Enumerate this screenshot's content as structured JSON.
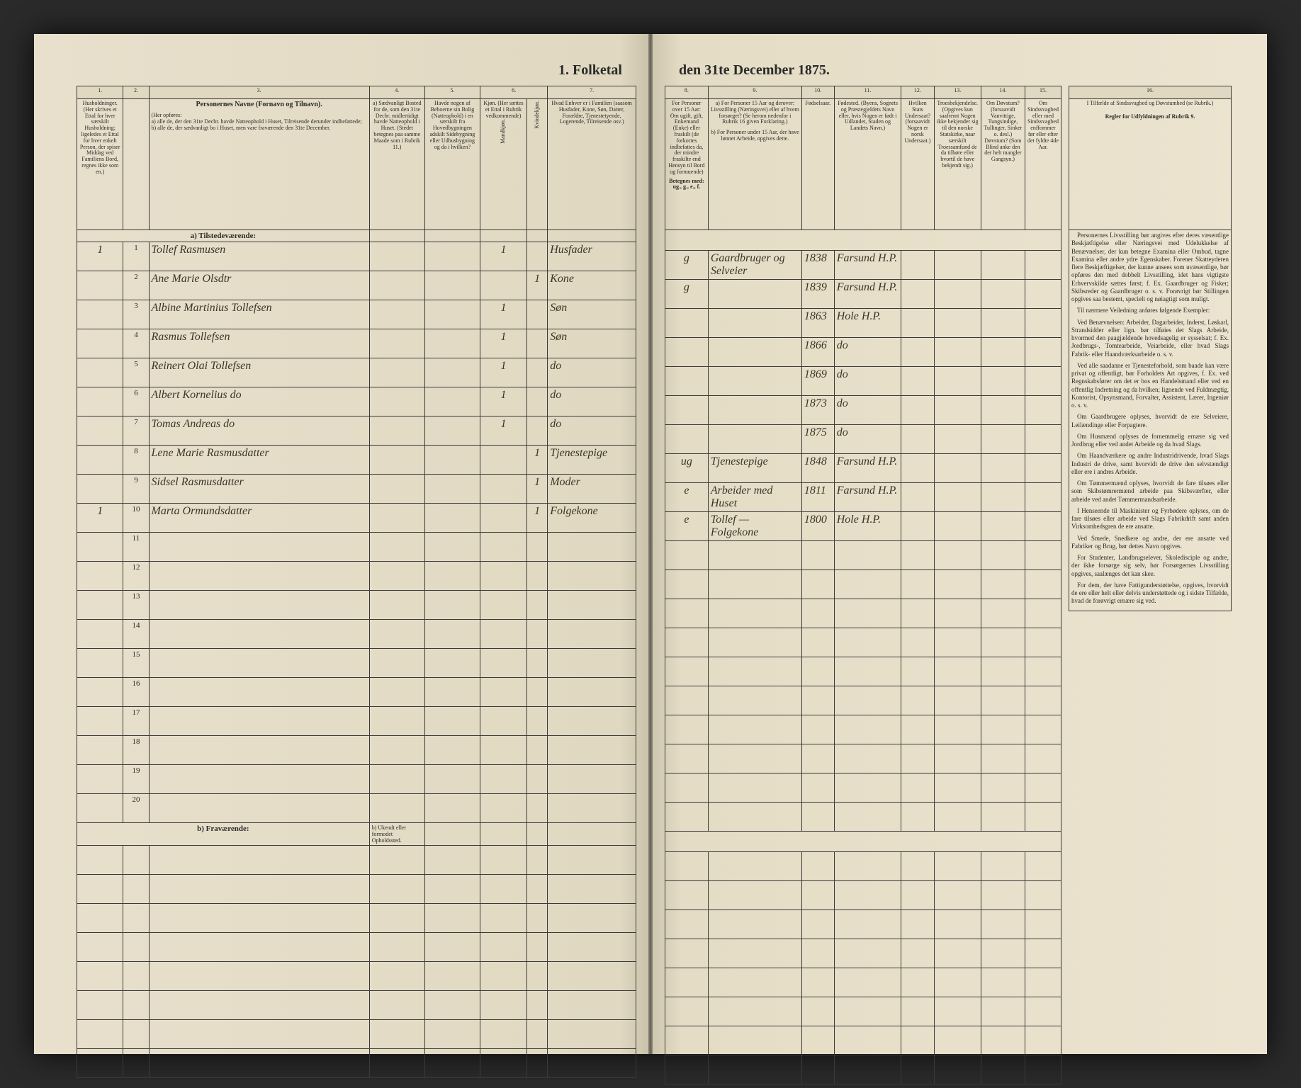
{
  "title_left": "1. Folketal",
  "title_right": "den 31te December 1875.",
  "columns_left": [
    "1.",
    "2.",
    "3.",
    "4.",
    "5.",
    "6.",
    "7."
  ],
  "columns_right": [
    "8.",
    "9.",
    "10.",
    "11.",
    "12.",
    "13.",
    "14.",
    "15.",
    "16."
  ],
  "headers_left": {
    "c1": "Husholdninger. (Her skrives et Ettal for hver særskilt Husholdning; ligeledes et Ettal for hver enkelt Person, der spiser Middag ved Familiens Bord, regnes ikke som en.)",
    "c2": "",
    "c3_title": "Personernes Navne (Fornavn og Tilnavn).",
    "c3_sub": "(Her opføres:\na) alle de, der den 31te Decbr. havde Natteophold i Huset, Tilreisende derunder indbefattede;\nb) alle de, der sædvanligt bo i Huset, men vare fraværende den 31te December.",
    "c4": "a) Sædvanligt Bosted for de, som den 31te Decbr. midlertidigt havde Natteophold i Huset. (Stedet betegnes paa samme Maade som i Rubrik 11.)",
    "c5": "Havde nogen af Beboerne sin Bolig (Natteophold) i en særskilt fra Hovedbygningen adskilt Sidebygning eller Udhusbygning og da i hvilken?",
    "c6": "Kjøn. (Her sættes et Ettal i Rubrik vedkommende)",
    "c6a": "Mandkjøn.",
    "c6b": "Kvindekjøn.",
    "c7": "Hvad Enhver er i Familien (saasom Husfader, Kone, Søn, Datter, Forældre, Tjenestetyende, Logerende, Tilreisende osv.)"
  },
  "headers_right": {
    "c8": "For Personer over 15 Aar: Om ugift, gift, Enkemand (Enke) eller fraskilt (de forkortes indbefattes da, der mindre fraskilte end Hensyn til Bord og formuende)",
    "c8b": "Betegnes med: ug., g., e., f.",
    "c9a": "a) For Personer 15 Aar og derover: Livsstilling (Næringsvei) eller af hvem forsørget? (Se herom nedenfor i Rubrik 16 given Forklaring.)",
    "c9b": "b) For Personer under 15 Aar, der have lønnet Arbeide, opgives dette.",
    "c10": "Fødselsaar.",
    "c11": "Fødested. (Byens, Sognets og Præstegjeldets Navn eller, hvis Nogen er født i Udlandet, Staden og Landets Navn.)",
    "c12": "Hvilken Stats Undersaat? (forsaavidt Nogen er norsk Undersaat.)",
    "c13": "Troesbekjendelse. (Opgives kun saafremt Nogen ikke bekjender sig til den norske Statskirke, naar særskilt Troessamfund de da tilhøre eller hvortil de have bekjendt sig.)",
    "c14": "Om Døvstum? (forsaavidt Vanvittige, Tungsindige, Tullinger, Sinker o. desl.) Døvstum? (Som Blind anke den der helt mangler Gangsyn.)",
    "c15": "Om Sindssvagbed eller med Sindssvagbed enffommer før eller efter det fyldte 4de Aar.",
    "c16_title": "I Tilfælde af Sindssvagbed og Døvstumhed (se Rubrik.)",
    "c16_sub": "Regler for Udfyldningen af Rubrik 9."
  },
  "section_a": "a) Tilstedeværende:",
  "section_b": "b) Fraværende:",
  "section_b_note": "b) Ukendt eller formodet Opholdssted.",
  "rows": [
    {
      "n": "1",
      "hh": "1",
      "name": "Tollef Rasmusen",
      "c4": "",
      "c5": "",
      "m": "1",
      "f": "",
      "rel": "Husfader",
      "ms": "g",
      "occ": "Gaardbruger og Selveier",
      "yr": "1838",
      "bp": "Farsund H.P."
    },
    {
      "n": "2",
      "hh": "",
      "name": "Ane Marie Olsdtr",
      "c4": "",
      "c5": "",
      "m": "",
      "f": "1",
      "rel": "Kone",
      "ms": "g",
      "occ": "",
      "yr": "1839",
      "bp": "Farsund H.P."
    },
    {
      "n": "3",
      "hh": "",
      "name": "Albine Martinius Tollefsen",
      "c4": "",
      "c5": "",
      "m": "1",
      "f": "",
      "rel": "Søn",
      "ms": "",
      "occ": "",
      "yr": "1863",
      "bp": "Hole H.P."
    },
    {
      "n": "4",
      "hh": "",
      "name": "Rasmus Tollefsen",
      "c4": "",
      "c5": "",
      "m": "1",
      "f": "",
      "rel": "Søn",
      "ms": "",
      "occ": "",
      "yr": "1866",
      "bp": "do"
    },
    {
      "n": "5",
      "hh": "",
      "name": "Reinert Olai Tollefsen",
      "c4": "",
      "c5": "",
      "m": "1",
      "f": "",
      "rel": "do",
      "ms": "",
      "occ": "",
      "yr": "1869",
      "bp": "do"
    },
    {
      "n": "6",
      "hh": "",
      "name": "Albert Kornelius do",
      "c4": "",
      "c5": "",
      "m": "1",
      "f": "",
      "rel": "do",
      "ms": "",
      "occ": "",
      "yr": "1873",
      "bp": "do"
    },
    {
      "n": "7",
      "hh": "",
      "name": "Tomas Andreas do",
      "c4": "",
      "c5": "",
      "m": "1",
      "f": "",
      "rel": "do",
      "ms": "",
      "occ": "",
      "yr": "1875",
      "bp": "do"
    },
    {
      "n": "8",
      "hh": "",
      "name": "Lene Marie Rasmusdatter",
      "c4": "",
      "c5": "",
      "m": "",
      "f": "1",
      "rel": "Tjenestepige",
      "ms": "ug",
      "occ": "Tjenestepige",
      "yr": "1848",
      "bp": "Farsund H.P."
    },
    {
      "n": "9",
      "hh": "",
      "name": "Sidsel Rasmusdatter",
      "c4": "",
      "c5": "",
      "m": "",
      "f": "1",
      "rel": "Moder",
      "ms": "e",
      "occ": "Arbeider med Huset",
      "yr": "1811",
      "bp": "Farsund H.P."
    },
    {
      "n": "10",
      "hh": "1",
      "name": "Marta Ormundsdatter",
      "c4": "",
      "c5": "",
      "m": "",
      "f": "1",
      "rel": "Folgekone",
      "ms": "e",
      "occ": "Tollef — Folgekone",
      "yr": "1800",
      "bp": "Hole H.P."
    }
  ],
  "empty_rows_a": [
    "11",
    "12",
    "13",
    "14",
    "15",
    "16",
    "17",
    "18",
    "19",
    "20"
  ],
  "empty_rows_b": 8,
  "instructions": {
    "title": "Regler for Udfyldningen af Rubrik 9.",
    "paras": [
      "Personernes Livsstilling bør angives efter deres væsentlige Beskjæftigelse eller Næringsvei med Udelukkelse af Benævnelser, der kun betegne Examina eller Ombud, tagne Examina eller andre ydre Egenskaber. Forener Skatteyderen flere Beskjæftigelser, der kunne ansees som uvæsentlige, bør opføres den med dobbelt Livsstilling, idet hans vigtigste Erhvervskilde sættes først; f. Ex. Gaardbruger og Fisker; Skibsreder og Gaardbruger o. s. v. Forøvrigt bør Stillingen opgives saa bestemt, specielt og nøiagtigt som muligt.",
      "Til nærmere Veiledning anføres følgende Exempler:",
      "Ved Benævnelsen: Arbeider, Dagarbeider, Inderst, Løskarl, Strandsidder eller lign. bør tilføies det Slags Arbeide, hvormed den paagjældende hovedsagelig er sysselsat; f. Ex. Jordbrugs-, Tomtearbeide, Veiarbeide, eller hvad Slags Fabrik- eller Haandværksarbeide o. s. v.",
      "Ved alle saadanne er Tjenesteforhold, som baade kan være privat og offentligt, bør Forholdets Art opgives, f. Ex. ved Regnskabsfører om det er hos en Handelsmand eller ved en offentlig Indretning og da hvilken; lignende ved Fuldmægtig, Kontorist, Opsynsmand, Forvalter, Assistent, Lærer, Ingeniør o. s. v.",
      "Om Gaardbrugere oplyses, hvorvidt de ere Selveiere, Leilændinge eller Forpagtere.",
      "Om Husmænd oplyses de fornemmelig ernære sig ved Jordbrug eller ved andet Arbeide og da hvad Slags.",
      "Om Haandværkere og andre Industridrivende, hvad Slags Industri de drive, samt hvorvidt de drive den selvstændigt eller ere i andres Arbeide.",
      "Om Tømmermænd oplyses, hvorvidt de fare tilsøes eller som Skibstømrermænd arbeide paa Skibsværfter, eller arbeide ved andet Tømmermandsarbeide.",
      "I Henseende til Maskinister og Fyrbødere oplyses, om de fare tilsøes eller arbeide ved Slags Fabrikdrift samt anden Virksomhedsgren de ere ansatte.",
      "Ved Smede, Snedkere og andre, der ere ansatte ved Fabriker og Brug, bør dettes Navn opgives.",
      "For Studenter, Landbrugselever, Skoledisciple og andre, der ikke forsørge sig selv, bør Forsørgernes Livsstilling opgives, saalænges det kan skee.",
      "For dem, der have Fattigunderstøttelse, opgives, hvorvidt de ere eller helt eller delvis understøttede og i sidste Tilfælde, hvad de forøvrigt ernære sig ved."
    ]
  }
}
